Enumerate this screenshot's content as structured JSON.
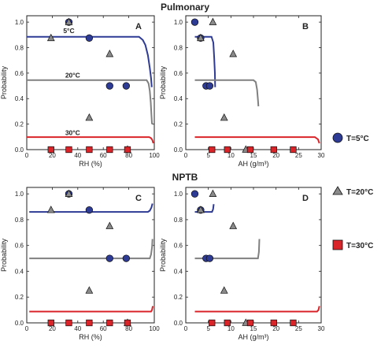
{
  "titles": {
    "top": "Pulmonary",
    "bottom": "NPTB"
  },
  "legend": [
    {
      "label": "T=5°C",
      "marker": "circle",
      "color": "#2e3b95"
    },
    {
      "label": "T=20°C",
      "marker": "triangle",
      "color": "#8a8a8a"
    },
    {
      "label": "T=30°C",
      "marker": "square",
      "color": "#d9252a"
    }
  ],
  "colors": {
    "t5": "#2e3b95",
    "t20": "#808080",
    "t30": "#d9252a"
  },
  "chart_data": [
    {
      "id": "A",
      "type": "scatter",
      "letter": "A",
      "xlabel": "RH (%)",
      "ylabel": "Probability",
      "xlim": [
        0,
        100
      ],
      "ylim": [
        0,
        1.05
      ],
      "xticks": [
        "0",
        "20",
        "40",
        "60",
        "80",
        "100"
      ],
      "yticks": [
        "0.0",
        "0.2",
        "0.4",
        "0.6",
        "0.8",
        "1.0"
      ],
      "curve_labels": [
        {
          "text": "5°C",
          "x": 33,
          "y": 0.915
        },
        {
          "text": "20°C",
          "x": 36,
          "y": 0.565
        },
        {
          "text": "30°C",
          "x": 36,
          "y": 0.115
        }
      ],
      "series": [
        {
          "name": "T=5°C",
          "kind": "points",
          "marker": "circle",
          "color": "#2e3b95",
          "points": [
            [
              33,
              1.0
            ],
            [
              49,
              0.875
            ],
            [
              65,
              0.5
            ],
            [
              78,
              0.5
            ]
          ]
        },
        {
          "name": "T=20°C",
          "kind": "points",
          "marker": "triangle",
          "color": "#8a8a8a",
          "points": [
            [
              19,
              0.875
            ],
            [
              33,
              1.0
            ],
            [
              49,
              0.25
            ],
            [
              65,
              0.75
            ],
            [
              79,
              0.0
            ]
          ]
        },
        {
          "name": "T=30°C",
          "kind": "points",
          "marker": "square",
          "color": "#d9252a",
          "points": [
            [
              19,
              0.0
            ],
            [
              33,
              0.0
            ],
            [
              49,
              0.0
            ],
            [
              65,
              0.0
            ],
            [
              79,
              0.0
            ]
          ]
        },
        {
          "name": "T=5°C",
          "kind": "line",
          "color": "#2e3b95",
          "points": [
            [
              0,
              0.885
            ],
            [
              88,
              0.885
            ],
            [
              91,
              0.86
            ],
            [
              93,
              0.82
            ],
            [
              95,
              0.74
            ],
            [
              96.5,
              0.64
            ],
            [
              97.5,
              0.56
            ],
            [
              98,
              0.49
            ]
          ]
        },
        {
          "name": "T=20°C",
          "kind": "line",
          "color": "#808080",
          "points": [
            [
              0,
              0.545
            ],
            [
              94,
              0.545
            ],
            [
              95.5,
              0.52
            ],
            [
              96.5,
              0.46
            ],
            [
              97.2,
              0.37
            ],
            [
              97.8,
              0.27
            ],
            [
              98.2,
              0.2
            ]
          ]
        },
        {
          "name": "T=30°C",
          "kind": "line",
          "color": "#d9252a",
          "points": [
            [
              0,
              0.098
            ],
            [
              96,
              0.098
            ],
            [
              97.5,
              0.09
            ],
            [
              98.5,
              0.075
            ],
            [
              99.2,
              0.05
            ]
          ]
        }
      ]
    },
    {
      "id": "B",
      "type": "scatter",
      "letter": "B",
      "xlabel": "AH (g/m³)",
      "ylabel": "Probability",
      "xlim": [
        0,
        30
      ],
      "ylim": [
        0,
        1.05
      ],
      "xticks": [
        "0",
        "5",
        "10",
        "15",
        "20",
        "25",
        "30"
      ],
      "yticks": [
        "0.0",
        "0.2",
        "0.4",
        "0.6",
        "0.8",
        "1.0"
      ],
      "series": [
        {
          "name": "T=5°C",
          "kind": "points",
          "marker": "circle",
          "color": "#2e3b95",
          "points": [
            [
              2,
              1.0
            ],
            [
              3.3,
              0.875
            ],
            [
              4.5,
              0.5
            ],
            [
              5.3,
              0.5
            ]
          ]
        },
        {
          "name": "T=20°C",
          "kind": "points",
          "marker": "triangle",
          "color": "#8a8a8a",
          "points": [
            [
              3.3,
              0.875
            ],
            [
              6,
              1.0
            ],
            [
              8.5,
              0.25
            ],
            [
              10.5,
              0.75
            ],
            [
              13.3,
              0.0
            ]
          ]
        },
        {
          "name": "T=30°C",
          "kind": "points",
          "marker": "square",
          "color": "#d9252a",
          "points": [
            [
              5.8,
              0.0
            ],
            [
              9.2,
              0.0
            ],
            [
              14.3,
              0.0
            ],
            [
              19.5,
              0.0
            ],
            [
              23.8,
              0.0
            ]
          ]
        },
        {
          "name": "T=5°C",
          "kind": "line",
          "color": "#2e3b95",
          "points": [
            [
              2,
              0.885
            ],
            [
              5.7,
              0.885
            ],
            [
              6.1,
              0.84
            ],
            [
              6.3,
              0.72
            ],
            [
              6.45,
              0.6
            ],
            [
              6.5,
              0.49
            ]
          ]
        },
        {
          "name": "T=20°C",
          "kind": "line",
          "color": "#808080",
          "points": [
            [
              2,
              0.545
            ],
            [
              15,
              0.545
            ],
            [
              15.5,
              0.53
            ],
            [
              15.8,
              0.47
            ],
            [
              16,
              0.39
            ],
            [
              16.1,
              0.34
            ]
          ]
        },
        {
          "name": "T=30°C",
          "kind": "line",
          "color": "#d9252a",
          "points": [
            [
              2,
              0.098
            ],
            [
              28.6,
              0.098
            ],
            [
              29.3,
              0.08
            ],
            [
              29.6,
              0.05
            ]
          ]
        }
      ]
    },
    {
      "id": "C",
      "type": "scatter",
      "letter": "C",
      "xlabel": "RH (%)",
      "ylabel": "Probability",
      "xlim": [
        0,
        100
      ],
      "ylim": [
        0,
        1.05
      ],
      "xticks": [
        "0",
        "20",
        "40",
        "60",
        "80",
        "100"
      ],
      "yticks": [
        "0.0",
        "0.2",
        "0.4",
        "0.6",
        "0.8",
        "1.0"
      ],
      "series": [
        {
          "name": "T=5°C",
          "kind": "points",
          "marker": "circle",
          "color": "#2e3b95",
          "points": [
            [
              33,
              1.0
            ],
            [
              49,
              0.875
            ],
            [
              65,
              0.5
            ],
            [
              78,
              0.5
            ]
          ]
        },
        {
          "name": "T=20°C",
          "kind": "points",
          "marker": "triangle",
          "color": "#8a8a8a",
          "points": [
            [
              19,
              0.875
            ],
            [
              33,
              1.0
            ],
            [
              49,
              0.25
            ],
            [
              65,
              0.75
            ],
            [
              79,
              0.0
            ]
          ]
        },
        {
          "name": "T=30°C",
          "kind": "points",
          "marker": "square",
          "color": "#d9252a",
          "points": [
            [
              19,
              0.0
            ],
            [
              33,
              0.0
            ],
            [
              49,
              0.0
            ],
            [
              65,
              0.0
            ],
            [
              79,
              0.0
            ]
          ]
        },
        {
          "name": "T=5°C",
          "kind": "line",
          "color": "#2e3b95",
          "points": [
            [
              2,
              0.86
            ],
            [
              95,
              0.86
            ],
            [
              96.5,
              0.87
            ],
            [
              97.8,
              0.895
            ],
            [
              98.6,
              0.925
            ]
          ]
        },
        {
          "name": "T=20°C",
          "kind": "line",
          "color": "#808080",
          "points": [
            [
              2,
              0.5
            ],
            [
              96.5,
              0.5
            ],
            [
              97.5,
              0.53
            ],
            [
              98.3,
              0.59
            ],
            [
              98.6,
              0.65
            ]
          ]
        },
        {
          "name": "T=30°C",
          "kind": "line",
          "color": "#d9252a",
          "points": [
            [
              2,
              0.088
            ],
            [
              97.5,
              0.088
            ],
            [
              98.2,
              0.1
            ],
            [
              98.8,
              0.13
            ]
          ]
        }
      ]
    },
    {
      "id": "D",
      "type": "scatter",
      "letter": "D",
      "xlabel": "AH (g/m³)",
      "ylabel": "Probability",
      "xlim": [
        0,
        30
      ],
      "ylim": [
        0,
        1.05
      ],
      "xticks": [
        "0",
        "5",
        "10",
        "15",
        "20",
        "25",
        "30"
      ],
      "yticks": [
        "0.0",
        "0.2",
        "0.4",
        "0.6",
        "0.8",
        "1.0"
      ],
      "series": [
        {
          "name": "T=5°C",
          "kind": "points",
          "marker": "circle",
          "color": "#2e3b95",
          "points": [
            [
              2,
              1.0
            ],
            [
              3.3,
              0.875
            ],
            [
              4.5,
              0.5
            ],
            [
              5.3,
              0.5
            ]
          ]
        },
        {
          "name": "T=20°C",
          "kind": "points",
          "marker": "triangle",
          "color": "#8a8a8a",
          "points": [
            [
              3.3,
              0.875
            ],
            [
              6,
              1.0
            ],
            [
              8.5,
              0.25
            ],
            [
              10.5,
              0.75
            ],
            [
              13.3,
              0.0
            ]
          ]
        },
        {
          "name": "T=30°C",
          "kind": "points",
          "marker": "square",
          "color": "#d9252a",
          "points": [
            [
              5.8,
              0.0
            ],
            [
              9.2,
              0.0
            ],
            [
              14.3,
              0.0
            ],
            [
              19.5,
              0.0
            ],
            [
              23.8,
              0.0
            ]
          ]
        },
        {
          "name": "T=5°C",
          "kind": "line",
          "color": "#2e3b95",
          "points": [
            [
              2,
              0.86
            ],
            [
              5.8,
              0.86
            ],
            [
              6.05,
              0.88
            ],
            [
              6.2,
              0.92
            ]
          ]
        },
        {
          "name": "T=20°C",
          "kind": "line",
          "color": "#808080",
          "points": [
            [
              2,
              0.5
            ],
            [
              16,
              0.5
            ],
            [
              16.2,
              0.55
            ],
            [
              16.3,
              0.65
            ]
          ]
        },
        {
          "name": "T=30°C",
          "kind": "line",
          "color": "#d9252a",
          "points": [
            [
              2,
              0.088
            ],
            [
              29.1,
              0.088
            ],
            [
              29.4,
              0.1
            ],
            [
              29.6,
              0.13
            ]
          ]
        }
      ]
    }
  ]
}
